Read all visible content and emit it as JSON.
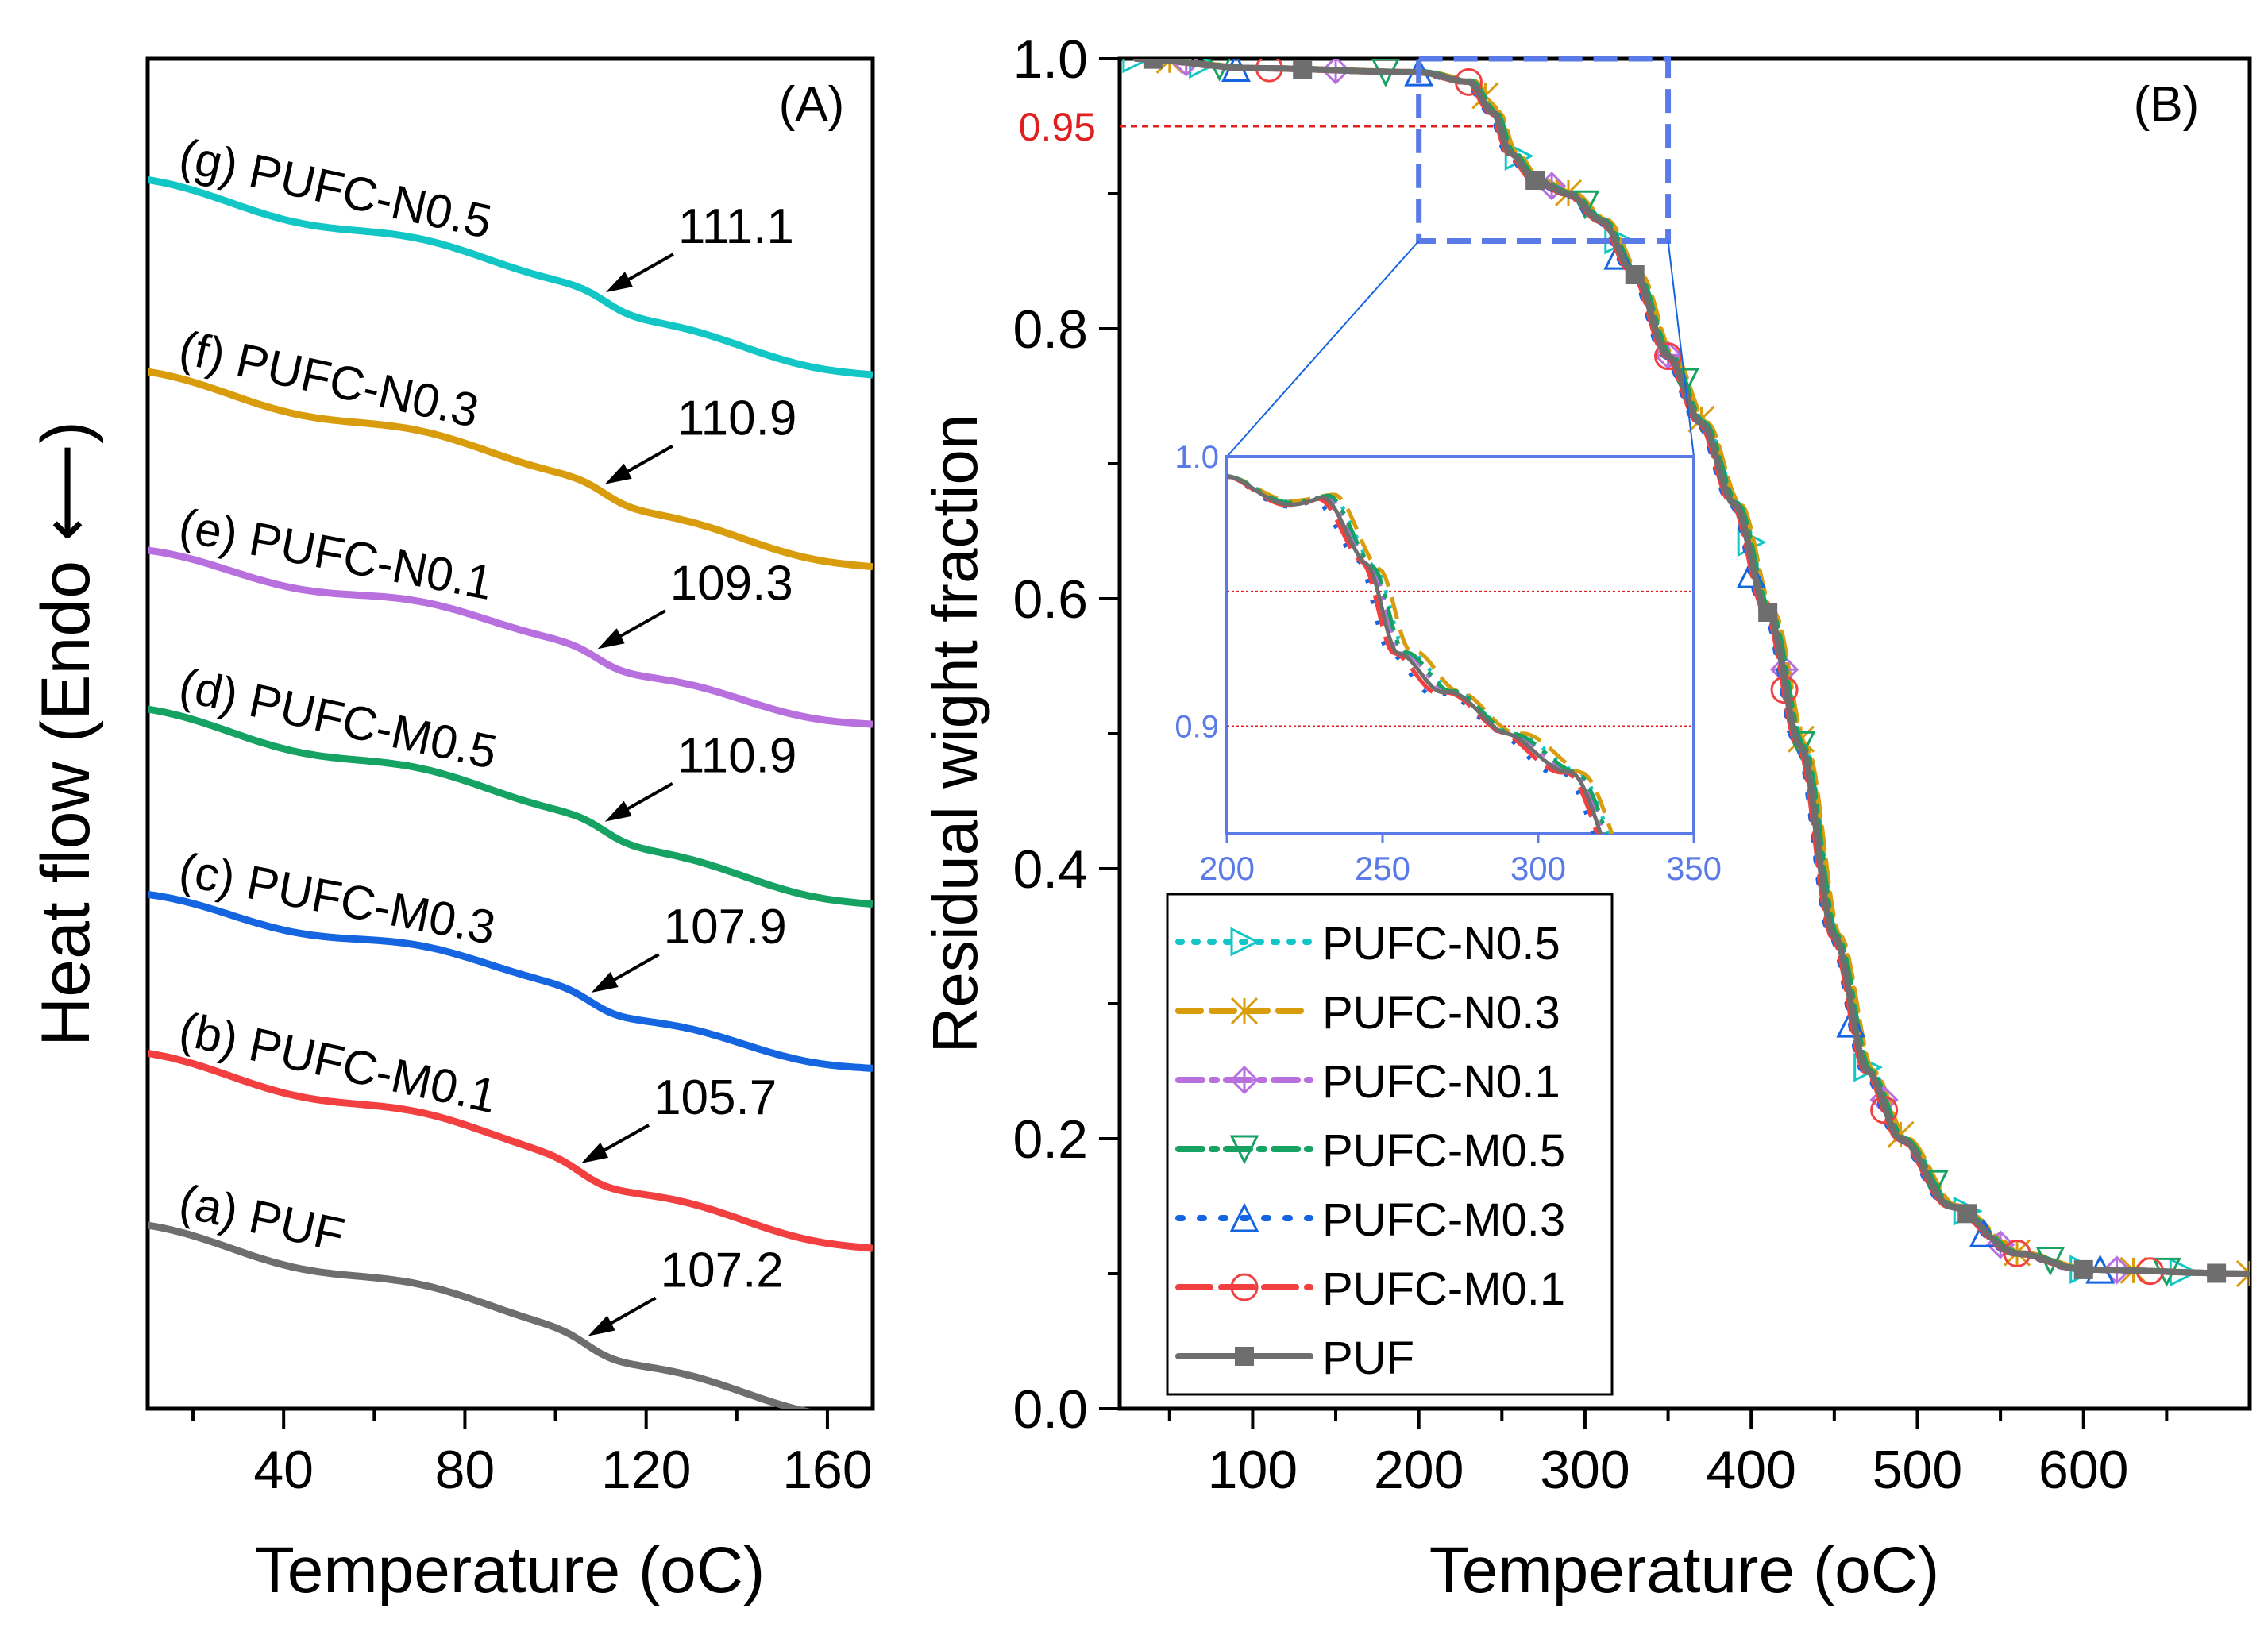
{
  "chart_data": [
    {
      "panel": "(A)",
      "type": "line",
      "xlabel": "Temperature (oC)",
      "ylabel": "Heat flow (Endo ⟵)",
      "xlim": [
        10,
        170
      ],
      "xticks": [
        40,
        80,
        120,
        160
      ],
      "ylim": [
        -0.2,
        10
      ],
      "grid": false,
      "series": [
        {
          "id": "a",
          "name": "(a) PUF",
          "tg": "107.2",
          "color": "#6e6e6e",
          "base": 1.15,
          "slope": 0.0075,
          "step": 0.24,
          "tgv": 107.2
        },
        {
          "id": "b",
          "name": "(b) PUFC-M0.1",
          "tg": "105.7",
          "color": "#f24040",
          "base": 2.45,
          "slope": 0.0075,
          "step": 0.24,
          "tgv": 105.7
        },
        {
          "id": "c",
          "name": "(c) PUFC-M0.3",
          "tg": "107.9",
          "color": "#1565e0",
          "base": 3.65,
          "slope": 0.0065,
          "step": 0.24,
          "tgv": 107.9
        },
        {
          "id": "d",
          "name": "(d) PUFC-M0.5",
          "tg": "110.9",
          "color": "#15a262",
          "base": 5.05,
          "slope": 0.0075,
          "step": 0.24,
          "tgv": 110.9
        },
        {
          "id": "e",
          "name": "(e) PUFC-N0.1",
          "tg": "109.3",
          "color": "#b870df",
          "base": 6.25,
          "slope": 0.0065,
          "step": 0.24,
          "tgv": 109.3
        },
        {
          "id": "f",
          "name": "(f) PUFC-N0.3",
          "tg": "110.9",
          "color": "#d99c0d",
          "base": 7.6,
          "slope": 0.0075,
          "step": 0.24,
          "tgv": 110.9
        },
        {
          "id": "g",
          "name": "(g) PUFC-N0.5",
          "tg": "111.1",
          "color": "#13c6c6",
          "base": 9.05,
          "slope": 0.0075,
          "step": 0.24,
          "tgv": 111.1
        }
      ]
    },
    {
      "panel": "(B)",
      "type": "line",
      "xlabel": "Temperature (oC)",
      "ylabel": "Residual wight fraction",
      "xlim": [
        20,
        700
      ],
      "xticks": [
        100,
        200,
        300,
        400,
        500,
        600
      ],
      "ylim": [
        0.0,
        1.0
      ],
      "yticks": [
        "0.0",
        "0.2",
        "0.4",
        "0.6",
        "0.8",
        "1.0"
      ],
      "reference_line": {
        "y": 0.95,
        "label": "0.95",
        "color": "#e02020"
      },
      "zoom_box": {
        "x": [
          200,
          350
        ],
        "y": [
          0.865,
          1.0
        ]
      },
      "legend_position": "lower-left",
      "points": {
        "x": [
          30,
          100,
          200,
          230,
          245,
          255,
          270,
          290,
          310,
          330,
          350,
          370,
          390,
          410,
          430,
          450,
          470,
          490,
          520,
          560,
          600,
          700
        ],
        "y": [
          1.0,
          0.993,
          0.99,
          0.983,
          0.96,
          0.93,
          0.91,
          0.9,
          0.88,
          0.84,
          0.78,
          0.73,
          0.67,
          0.59,
          0.49,
          0.35,
          0.25,
          0.2,
          0.15,
          0.115,
          0.103,
          0.1
        ]
      },
      "series": [
        {
          "name": "PUFC-N0.5",
          "color": "#13c6c6",
          "marker": "triangle-right",
          "dash": "dotted",
          "shift": 2,
          "markers_x": [
            30,
            70,
            260,
            320,
            400,
            470,
            530,
            600,
            660
          ]
        },
        {
          "name": "PUFC-N0.3",
          "color": "#d99c0d",
          "marker": "x-star",
          "dash": "dash",
          "shift": 3,
          "markers_x": [
            50,
            240,
            290,
            370,
            430,
            490,
            560,
            630,
            700
          ]
        },
        {
          "name": "PUFC-N0.1",
          "color": "#b870df",
          "marker": "diamond-plus",
          "dash": "dashdot",
          "shift": 1,
          "markers_x": [
            60,
            150,
            280,
            350,
            420,
            480,
            550,
            620
          ]
        },
        {
          "name": "PUFC-M0.5",
          "color": "#15a262",
          "marker": "triangle-down",
          "dash": "dashdot",
          "shift": 1.5,
          "markers_x": [
            80,
            180,
            300,
            360,
            430,
            510,
            580,
            650
          ]
        },
        {
          "name": "PUFC-M0.3",
          "color": "#1565e0",
          "marker": "triangle-up",
          "dash": "dotted-wide",
          "shift": -2,
          "markers_x": [
            90,
            200,
            320,
            400,
            460,
            540,
            610
          ]
        },
        {
          "name": "PUFC-M0.1",
          "color": "#f24040",
          "marker": "circle",
          "dash": "dash-long",
          "shift": -1,
          "markers_x": [
            110,
            230,
            350,
            420,
            480,
            560,
            640
          ]
        },
        {
          "name": "PUF",
          "color": "#6e6e6e",
          "marker": "square",
          "dash": "solid",
          "shift": 0,
          "markers_x": [
            40,
            130,
            270,
            330,
            410,
            530,
            600,
            680
          ]
        }
      ],
      "inset": {
        "xlim": [
          200,
          350
        ],
        "ylim": [
          0.86,
          1.0
        ],
        "xticks": [
          "200",
          "250",
          "300",
          "350"
        ],
        "yticks": [
          {
            "v": 1.0,
            "label": "1.0"
          },
          {
            "v": 0.9,
            "label": "0.9"
          }
        ],
        "ref_lines": [
          0.95,
          0.9
        ],
        "color": "#5a7ae8"
      }
    }
  ]
}
